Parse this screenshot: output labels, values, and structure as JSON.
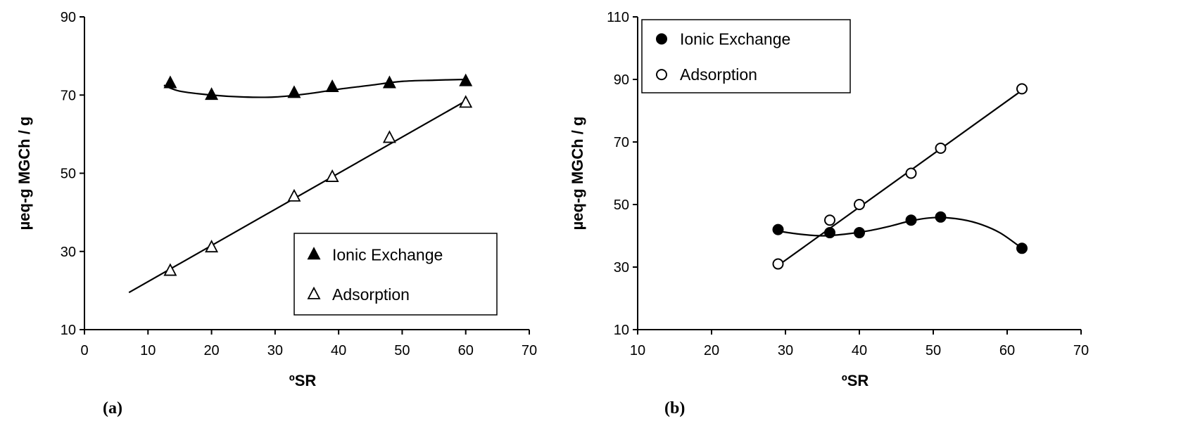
{
  "chart_data": [
    {
      "panel_label": "(a)",
      "type": "scatter",
      "xlabel": "ºSR",
      "ylabel": "µeq-g MGCh / g",
      "xlim": [
        0,
        70
      ],
      "ylim": [
        10,
        90
      ],
      "xticks": [
        0,
        10,
        20,
        30,
        40,
        50,
        60,
        70
      ],
      "yticks": [
        10,
        30,
        50,
        70,
        90
      ],
      "grid": false,
      "legend_position": "bottom-right",
      "series": [
        {
          "name": "Ionic Exchange",
          "marker": "filled-triangle",
          "x": [
            13.5,
            20,
            33,
            39,
            48,
            60
          ],
          "y": [
            73,
            70,
            70.5,
            72,
            73,
            73.5
          ],
          "fit": "smooth",
          "fit_x": [
            12.5,
            15,
            20,
            25,
            30,
            35,
            40,
            45,
            50,
            55,
            60
          ],
          "fit_y": [
            72.5,
            71,
            70,
            69.5,
            69.5,
            70.3,
            71.5,
            72.5,
            73.5,
            73.8,
            74
          ]
        },
        {
          "name": "Adsorption",
          "marker": "open-triangle",
          "x": [
            13.5,
            20,
            33,
            39,
            48,
            60
          ],
          "y": [
            25,
            31,
            44,
            49,
            59,
            68
          ],
          "fit": "linear",
          "fit_x": [
            7,
            60
          ],
          "fit_y": [
            19.5,
            68.5
          ]
        }
      ]
    },
    {
      "panel_label": "(b)",
      "type": "scatter",
      "xlabel": "ºSR",
      "ylabel": "µeq-g MGCh / g",
      "xlim": [
        10,
        70
      ],
      "ylim": [
        10,
        110
      ],
      "xticks": [
        10,
        20,
        30,
        40,
        50,
        60,
        70
      ],
      "yticks": [
        10,
        30,
        50,
        70,
        90,
        110
      ],
      "grid": false,
      "legend_position": "top-left",
      "series": [
        {
          "name": "Ionic Exchange",
          "marker": "filled-circle",
          "x": [
            29,
            36,
            40,
            47,
            51,
            62
          ],
          "y": [
            42,
            41,
            41,
            45,
            46,
            36
          ],
          "fit": "smooth",
          "fit_x": [
            29,
            32,
            35,
            38,
            41,
            44,
            47,
            50,
            53,
            56,
            59,
            62
          ],
          "fit_y": [
            41.5,
            40.5,
            40,
            40.5,
            41.5,
            43,
            44.8,
            45.8,
            45.5,
            44,
            41,
            36
          ]
        },
        {
          "name": "Adsorption",
          "marker": "open-circle",
          "x": [
            29,
            36,
            40,
            47,
            51,
            62
          ],
          "y": [
            31,
            45,
            50,
            60,
            68,
            87
          ],
          "fit": "linear",
          "fit_x": [
            29,
            62
          ],
          "fit_y": [
            30.5,
            86.5
          ]
        }
      ]
    }
  ]
}
